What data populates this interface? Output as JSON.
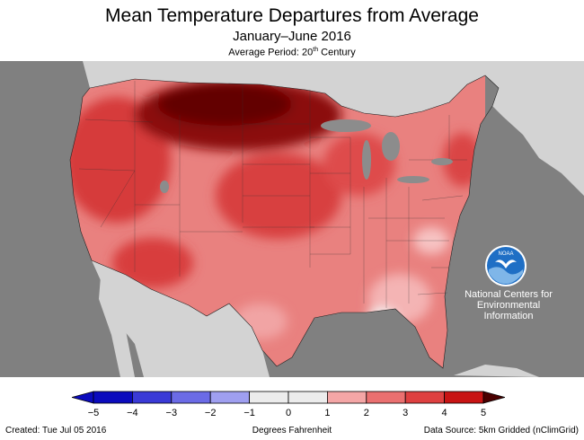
{
  "header": {
    "title": "Mean Temperature Departures from Average",
    "subtitle": "January–June 2016",
    "period_prefix": "Average Period: 20",
    "period_sup": "th",
    "period_suffix": " Century"
  },
  "map": {
    "ocean_color": "#808080",
    "foreign_land_color": "#d3d3d3",
    "water_color": "#8c8c8c"
  },
  "logo": {
    "label": "NOAA",
    "org_line1": "National Centers for",
    "org_line2": "Environmental",
    "org_line3": "Information"
  },
  "legend": {
    "ticks": [
      "−5",
      "−4",
      "−3",
      "−2",
      "−1",
      "0",
      "1",
      "2",
      "3",
      "4",
      "5"
    ],
    "colors": [
      "#0b0bbd",
      "#3a3ad6",
      "#6b6be6",
      "#9f9ff0",
      "#ececec",
      "#ececec",
      "#f4a6a6",
      "#ea7070",
      "#de4040",
      "#c81414"
    ],
    "units": "Degrees Fahrenheit"
  },
  "footer": {
    "created": "Created: Tue Jul 05 2016",
    "source": "Data Source: 5km Gridded (nClimGrid)"
  }
}
